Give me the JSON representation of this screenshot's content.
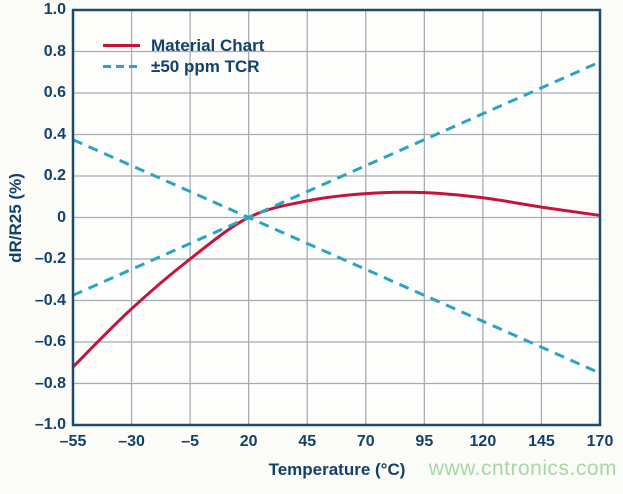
{
  "colors": {
    "background": "#fbfbf8",
    "plot_background": "#fdfdfc",
    "text_navy": "#14406a",
    "frame": "#1f4a68",
    "grid": "#a6acb4",
    "red": "#c3143c",
    "teal": "#2ba4c2",
    "watermark_green": "#a6d8a5"
  },
  "chart": {
    "legend": {
      "items": [
        {
          "label": "Material Chart",
          "style": "solid"
        },
        {
          "label": "±50 ppm TCR",
          "style": "dashed"
        }
      ]
    },
    "y_tick_labels": [
      "1.0",
      "0.8",
      "0.6",
      "0.4",
      "0.2",
      "0",
      "–0.2",
      "–0.4",
      "–0.6",
      "–0.8",
      "–1.0"
    ],
    "x_tick_labels": [
      "–55",
      "–30",
      "–5",
      "20",
      "45",
      "70",
      "95",
      "120",
      "145",
      "170"
    ]
  },
  "watermark": {
    "text": "www.cntronics.com"
  },
  "chart_data": {
    "type": "line",
    "title": "",
    "xlabel": "Temperature (°C)",
    "ylabel": "dR/R25 (%)",
    "xlim": [
      -55,
      170
    ],
    "ylim": [
      -1.0,
      1.0
    ],
    "x_ticks": [
      -55,
      -30,
      -5,
      20,
      45,
      70,
      95,
      120,
      145,
      170
    ],
    "y_ticks": [
      1.0,
      0.8,
      0.6,
      0.4,
      0.2,
      0,
      -0.2,
      -0.4,
      -0.6,
      -0.8,
      -1.0
    ],
    "grid": true,
    "legend_position": "top-left",
    "series": [
      {
        "name": "Material Chart",
        "color_key": "red",
        "line": "solid",
        "smooth": true,
        "x": [
          -55,
          -30,
          -5,
          20,
          45,
          70,
          95,
          120,
          145,
          170
        ],
        "y": [
          -0.72,
          -0.44,
          -0.2,
          0.0,
          0.08,
          0.115,
          0.12,
          0.095,
          0.05,
          0.01
        ]
      },
      {
        "name": "+50 ppm TCR",
        "color_key": "teal",
        "line": "dashed",
        "smooth": false,
        "x": [
          -55,
          170
        ],
        "y": [
          -0.375,
          0.75
        ]
      },
      {
        "name": "−50 ppm TCR",
        "color_key": "teal",
        "line": "dashed",
        "smooth": false,
        "x": [
          -55,
          170
        ],
        "y": [
          0.375,
          -0.75
        ]
      }
    ]
  }
}
